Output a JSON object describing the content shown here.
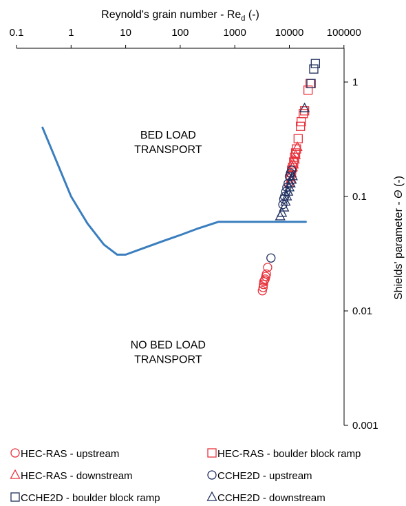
{
  "chart_data": {
    "type": "scatter",
    "x_axis": {
      "label": "Reynold's grain number - Re",
      "label_subscript": "d",
      "label_suffix": " (-)",
      "scale": "log",
      "range": [
        0.1,
        100000
      ],
      "ticks": [
        "0.1",
        "1",
        "10",
        "100",
        "1000",
        "10000",
        "100000"
      ],
      "position": "top"
    },
    "y_axis": {
      "label_prefix": "Shields' parameter - ",
      "label_symbol": "Θ",
      "label_suffix": " (-)",
      "scale": "log",
      "range": [
        0.001,
        2
      ],
      "ticks": [
        "1",
        "0.1",
        "0.01",
        "0.001"
      ],
      "position": "right"
    },
    "annotations": [
      {
        "lines": [
          "BED LOAD",
          "TRANSPORT"
        ],
        "x": 60,
        "y": 0.32
      },
      {
        "lines": [
          "NO BED LOAD",
          "TRANSPORT"
        ],
        "x": 60,
        "y": 0.0047
      }
    ],
    "curve": {
      "color": "#3a7ebf",
      "points": [
        [
          0.3,
          0.4
        ],
        [
          0.6,
          0.18
        ],
        [
          1,
          0.1
        ],
        [
          2,
          0.058
        ],
        [
          4,
          0.038
        ],
        [
          7,
          0.031
        ],
        [
          10,
          0.031
        ],
        [
          20,
          0.035
        ],
        [
          50,
          0.041
        ],
        [
          100,
          0.046
        ],
        [
          200,
          0.052
        ],
        [
          500,
          0.06
        ],
        [
          20000,
          0.06
        ]
      ]
    },
    "series": [
      {
        "name": "HEC-RAS - upstream",
        "marker": "circle",
        "color": "#e8323c",
        "points": [
          [
            3200,
            0.015
          ],
          [
            3300,
            0.016
          ],
          [
            3350,
            0.017
          ],
          [
            3400,
            0.018
          ],
          [
            3500,
            0.0185
          ],
          [
            3600,
            0.019
          ],
          [
            3700,
            0.02
          ],
          [
            3800,
            0.021
          ],
          [
            4000,
            0.024
          ]
        ]
      },
      {
        "name": "HEC-RAS - boulder block ramp",
        "marker": "square",
        "color": "#e8323c",
        "points": [
          [
            10500,
            0.15
          ],
          [
            11000,
            0.17
          ],
          [
            11500,
            0.18
          ],
          [
            12000,
            0.2
          ],
          [
            12500,
            0.22
          ],
          [
            13000,
            0.24
          ],
          [
            13500,
            0.26
          ],
          [
            14500,
            0.32
          ],
          [
            16000,
            0.41
          ],
          [
            16500,
            0.45
          ],
          [
            18000,
            0.53
          ],
          [
            19000,
            0.56
          ],
          [
            22000,
            0.85
          ],
          [
            24000,
            0.97
          ]
        ]
      },
      {
        "name": "HEC-RAS - downstream",
        "marker": "triangle",
        "color": "#e8323c",
        "points": [
          [
            10000,
            0.13
          ],
          [
            10500,
            0.14
          ],
          [
            11000,
            0.16
          ],
          [
            11500,
            0.18
          ],
          [
            12000,
            0.19
          ],
          [
            12500,
            0.21
          ],
          [
            13000,
            0.23
          ],
          [
            14000,
            0.27
          ]
        ]
      },
      {
        "name": "CCHE2D - upstream",
        "marker": "circle",
        "color": "#1f2f5e",
        "points": [
          [
            4600,
            0.029
          ],
          [
            7600,
            0.085
          ],
          [
            7900,
            0.095
          ],
          [
            8200,
            0.1
          ],
          [
            8600,
            0.11
          ],
          [
            9000,
            0.12
          ],
          [
            9500,
            0.13
          ],
          [
            10000,
            0.15
          ],
          [
            10500,
            0.16
          ],
          [
            11000,
            0.17
          ]
        ]
      },
      {
        "name": "CCHE2D - boulder block ramp",
        "marker": "square",
        "color": "#1f2f5e",
        "points": [
          [
            25000,
            0.97
          ],
          [
            28000,
            1.3
          ],
          [
            30000,
            1.45
          ]
        ]
      },
      {
        "name": "CCHE2D - downstream",
        "marker": "triangle",
        "color": "#1f2f5e",
        "points": [
          [
            6800,
            0.067
          ],
          [
            7300,
            0.072
          ],
          [
            8000,
            0.08
          ],
          [
            8500,
            0.09
          ],
          [
            9000,
            0.1
          ],
          [
            9500,
            0.11
          ],
          [
            10000,
            0.12
          ],
          [
            10500,
            0.13
          ],
          [
            11000,
            0.14
          ],
          [
            11500,
            0.15
          ],
          [
            19000,
            0.59
          ]
        ]
      }
    ],
    "legend_placement": "bottom",
    "grid": false
  }
}
